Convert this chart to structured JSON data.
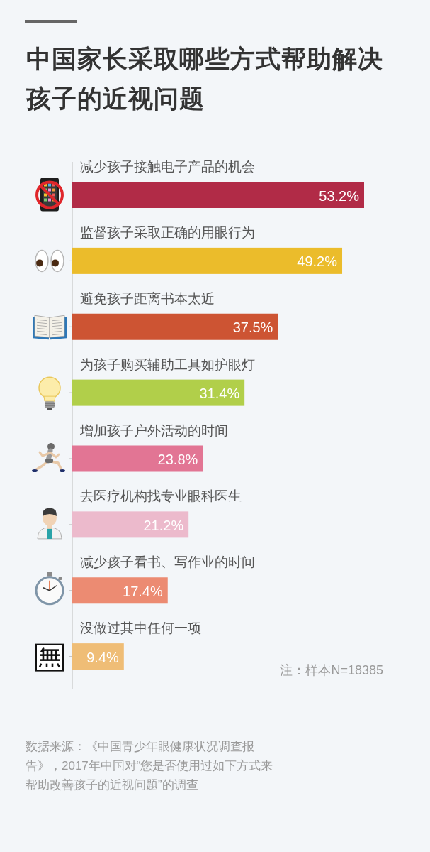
{
  "chart_data": {
    "type": "bar",
    "orientation": "horizontal",
    "title": "中国家长采取哪些方式帮助解决孩子的近视问题",
    "categories": [
      "减少孩子接触电子产品的机会",
      "监督孩子采取正确的用眼行为",
      "避免孩子距离书本太近",
      "为孩子购买辅助工具如护眼灯",
      "增加孩子户外活动的时间",
      "去医疗机构找专业眼科医生",
      "减少孩子看书、写作业的时间",
      "没做过其中任何一项"
    ],
    "values": [
      53.2,
      49.2,
      37.5,
      31.4,
      23.8,
      21.2,
      17.4,
      9.4
    ],
    "colors": [
      "#b12b47",
      "#ebbc2b",
      "#cd5433",
      "#b1cf4a",
      "#e27594",
      "#ecbacc",
      "#ec8b72",
      "#efbd76"
    ],
    "value_labels": [
      "53.2%",
      "49.2%",
      "37.5%",
      "31.4%",
      "23.8%",
      "21.2%",
      "17.4%",
      "9.4%"
    ],
    "annotations": [
      "注：样本N=18385",
      "数据来源：《中国青少年眼健康状况调查报告》，2017年中国对“您是否使用过如下方式来帮助改善孩子的近视问题”的调查"
    ]
  }
}
